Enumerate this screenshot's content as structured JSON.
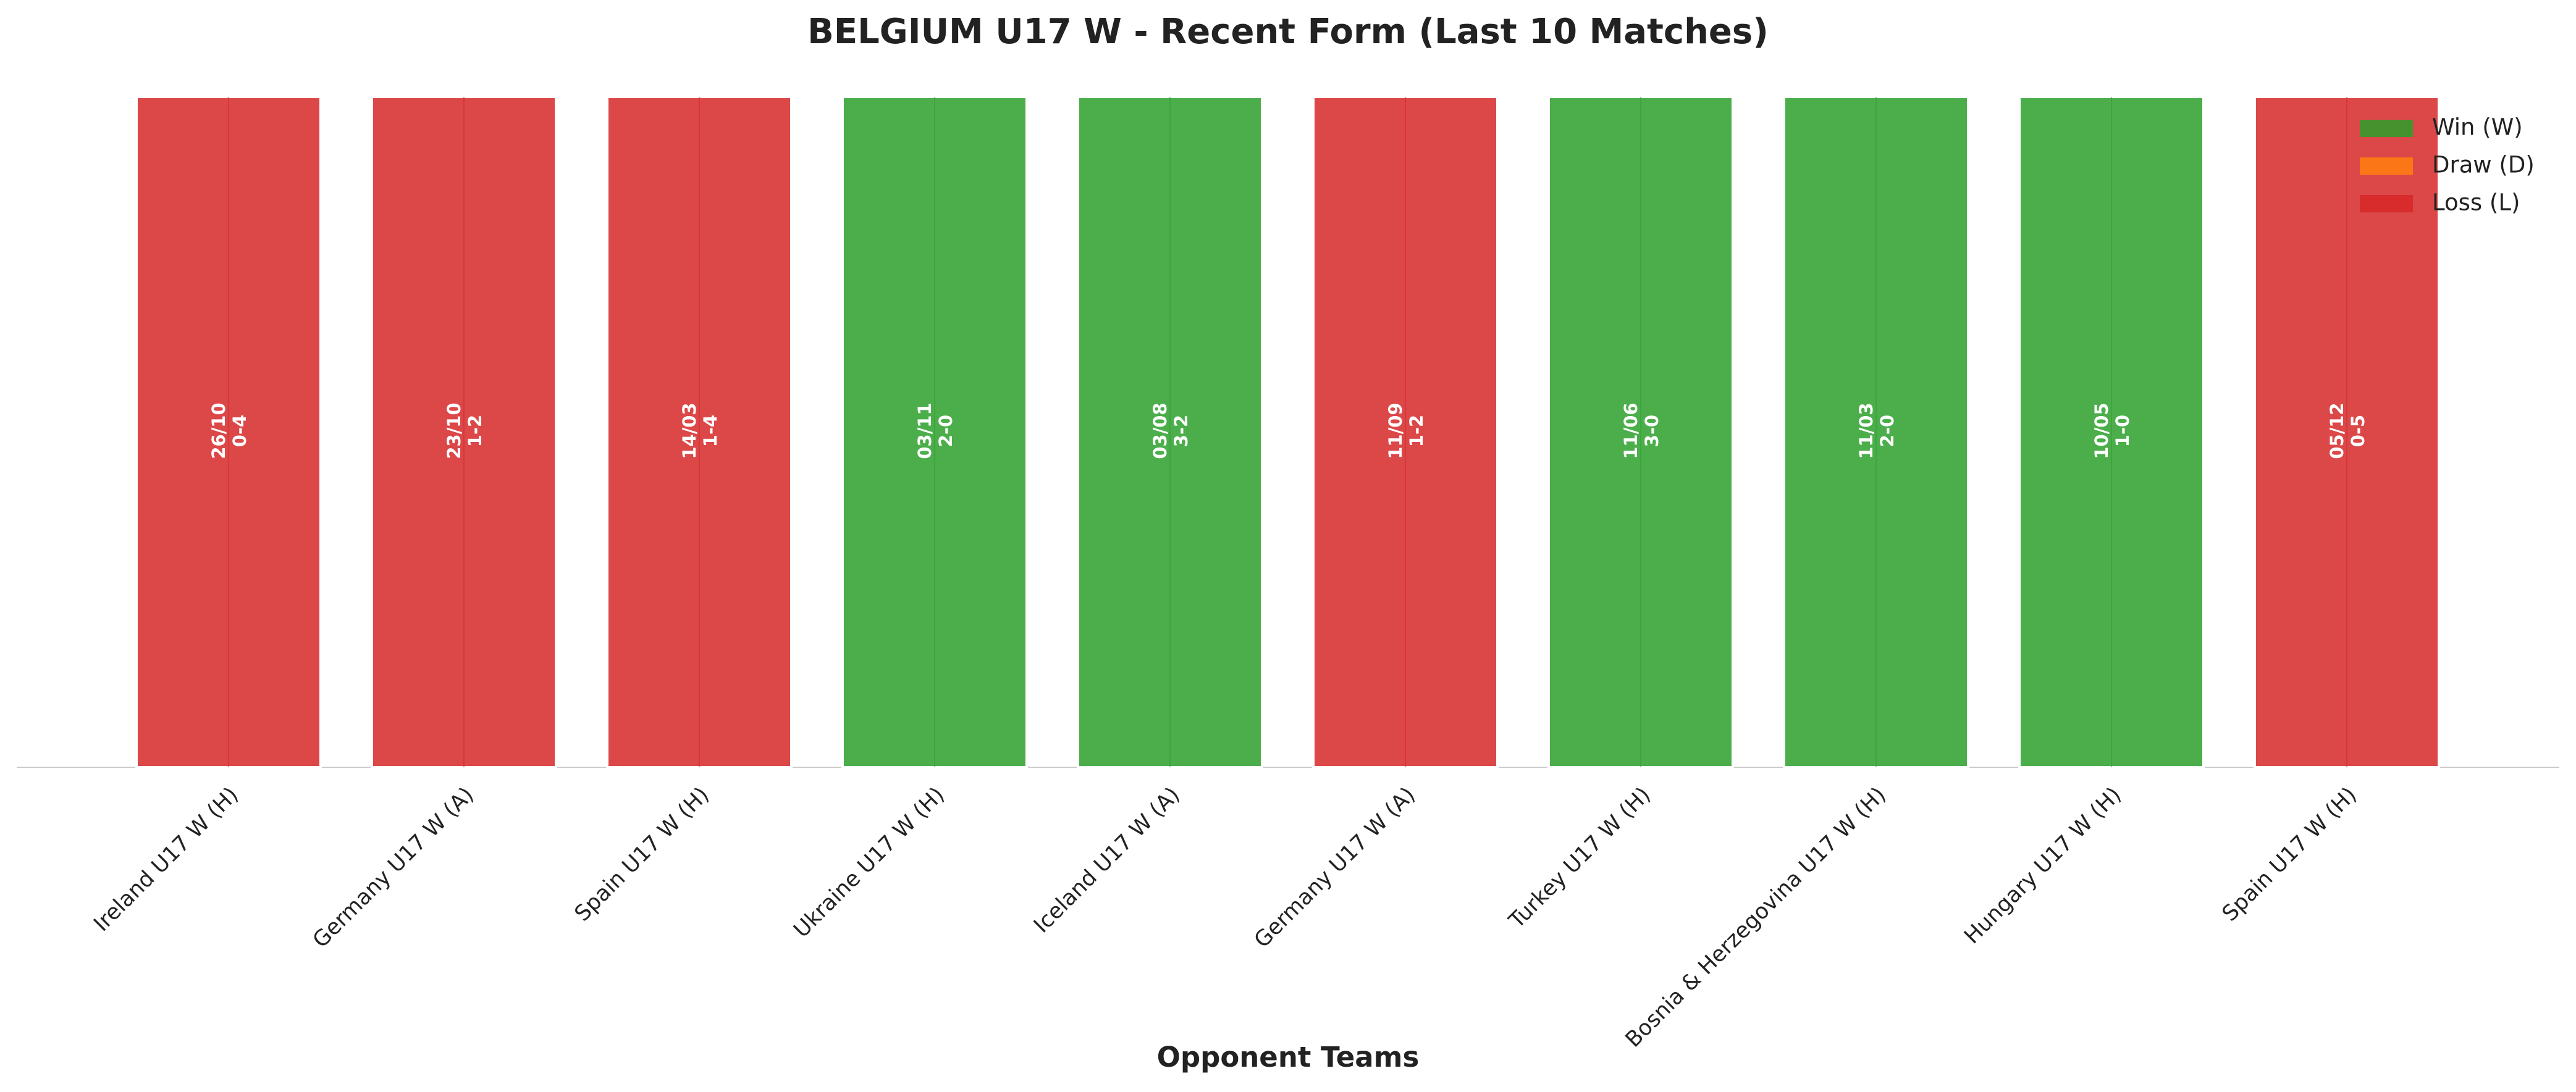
{
  "chart_data": {
    "type": "bar",
    "title": "BELGIUM U17 W - Recent Form (Last 10 Matches)",
    "xlabel": "Opponent Teams",
    "categories": [
      "Ireland U17 W (H)",
      "Germany U17 W (A)",
      "Spain U17 W (H)",
      "Ukraine U17 W (H)",
      "Iceland U17 W (A)",
      "Germany U17 W (A)",
      "Turkey U17 W (H)",
      "Bosnia & Herzegovina U17 W (H)",
      "Hungary U17 W (H)",
      "Spain U17 W (H)"
    ],
    "values": [
      1,
      1,
      1,
      1,
      1,
      1,
      1,
      1,
      1,
      1
    ],
    "dates": [
      "26/10",
      "23/10",
      "14/03",
      "03/11",
      "03/08",
      "11/09",
      "11/06",
      "11/03",
      "10/05",
      "05/12"
    ],
    "scores": [
      "0-4",
      "1-2",
      "1-4",
      "2-0",
      "3-2",
      "1-2",
      "3-0",
      "2-0",
      "1-0",
      "0-5"
    ],
    "colors": [
      "#d62728",
      "#d62728",
      "#d62728",
      "#2ca02c",
      "#2ca02c",
      "#d62728",
      "#2ca02c",
      "#2ca02c",
      "#2ca02c",
      "#d62728"
    ],
    "ylim": [
      0,
      1
    ],
    "legend_position": "upper right",
    "legend": [
      {
        "name": "Win (W)",
        "color": "#2ca02c"
      },
      {
        "name": "Draw (D)",
        "color": "#ff7f0e"
      },
      {
        "name": "Loss (L)",
        "color": "#d62728"
      }
    ]
  }
}
